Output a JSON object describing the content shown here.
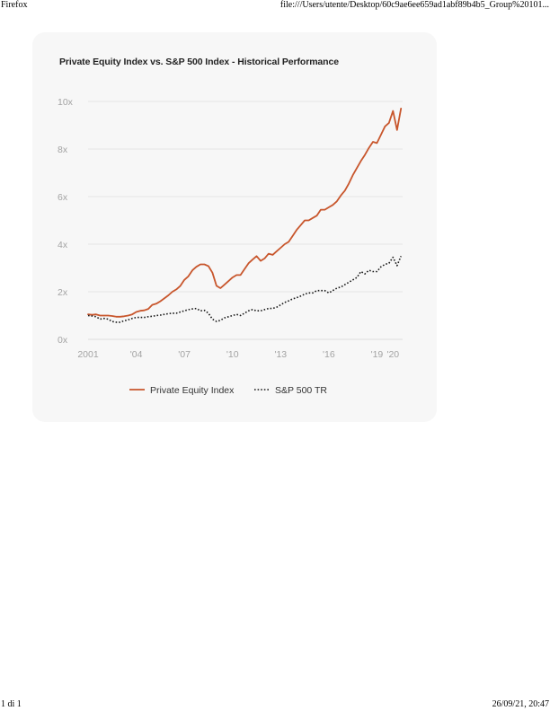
{
  "browser": {
    "header_left": "Firefox",
    "header_right": "file:///Users/utente/Desktop/60c9ae6ee659ad1abf89b4b5_Group%20101...",
    "footer_left": "1 di 1",
    "footer_right": "26/09/21, 20:47"
  },
  "chart_data": {
    "type": "line",
    "title": "Private Equity Index vs. S&P 500 Index - Historical Performance",
    "xlabel": "",
    "ylabel": "",
    "xlim": [
      2001,
      2020.6
    ],
    "ylim": [
      0,
      10
    ],
    "grid": true,
    "legend_position": "bottom",
    "x_ticks": [
      {
        "value": 2001,
        "label": "2001"
      },
      {
        "value": 2004,
        "label": "'04"
      },
      {
        "value": 2007,
        "label": "'07"
      },
      {
        "value": 2010,
        "label": "'10"
      },
      {
        "value": 2013,
        "label": "'13"
      },
      {
        "value": 2016,
        "label": "'16"
      },
      {
        "value": 2019,
        "label": "'19"
      },
      {
        "value": 2020,
        "label": "'20"
      }
    ],
    "y_ticks": [
      {
        "value": 0,
        "label": "0x"
      },
      {
        "value": 2,
        "label": "2x"
      },
      {
        "value": 4,
        "label": "4x"
      },
      {
        "value": 6,
        "label": "6x"
      },
      {
        "value": 8,
        "label": "8x"
      },
      {
        "value": 10,
        "label": "10x"
      }
    ],
    "series": [
      {
        "name": "Private Equity Index",
        "color": "#c8562c",
        "style": "solid",
        "points": [
          [
            2001.0,
            1.05
          ],
          [
            2001.25,
            1.03
          ],
          [
            2001.5,
            1.05
          ],
          [
            2001.75,
            1.0
          ],
          [
            2002.0,
            1.0
          ],
          [
            2002.25,
            1.0
          ],
          [
            2002.5,
            0.98
          ],
          [
            2002.75,
            0.95
          ],
          [
            2003.0,
            0.95
          ],
          [
            2003.25,
            0.97
          ],
          [
            2003.5,
            1.0
          ],
          [
            2003.75,
            1.05
          ],
          [
            2004.0,
            1.15
          ],
          [
            2004.25,
            1.2
          ],
          [
            2004.5,
            1.22
          ],
          [
            2004.75,
            1.28
          ],
          [
            2005.0,
            1.45
          ],
          [
            2005.25,
            1.5
          ],
          [
            2005.5,
            1.6
          ],
          [
            2005.75,
            1.72
          ],
          [
            2006.0,
            1.85
          ],
          [
            2006.25,
            2.0
          ],
          [
            2006.5,
            2.1
          ],
          [
            2006.75,
            2.25
          ],
          [
            2007.0,
            2.5
          ],
          [
            2007.25,
            2.65
          ],
          [
            2007.5,
            2.9
          ],
          [
            2007.75,
            3.05
          ],
          [
            2008.0,
            3.15
          ],
          [
            2008.25,
            3.15
          ],
          [
            2008.5,
            3.08
          ],
          [
            2008.75,
            2.8
          ],
          [
            2009.0,
            2.25
          ],
          [
            2009.25,
            2.15
          ],
          [
            2009.5,
            2.3
          ],
          [
            2009.75,
            2.45
          ],
          [
            2010.0,
            2.6
          ],
          [
            2010.25,
            2.7
          ],
          [
            2010.5,
            2.7
          ],
          [
            2010.75,
            2.95
          ],
          [
            2011.0,
            3.2
          ],
          [
            2011.25,
            3.35
          ],
          [
            2011.5,
            3.5
          ],
          [
            2011.75,
            3.3
          ],
          [
            2012.0,
            3.4
          ],
          [
            2012.25,
            3.6
          ],
          [
            2012.5,
            3.55
          ],
          [
            2012.75,
            3.7
          ],
          [
            2013.0,
            3.85
          ],
          [
            2013.25,
            4.0
          ],
          [
            2013.5,
            4.1
          ],
          [
            2013.75,
            4.35
          ],
          [
            2014.0,
            4.6
          ],
          [
            2014.25,
            4.8
          ],
          [
            2014.5,
            5.0
          ],
          [
            2014.75,
            5.0
          ],
          [
            2015.0,
            5.1
          ],
          [
            2015.25,
            5.2
          ],
          [
            2015.5,
            5.45
          ],
          [
            2015.75,
            5.45
          ],
          [
            2016.0,
            5.55
          ],
          [
            2016.25,
            5.65
          ],
          [
            2016.5,
            5.8
          ],
          [
            2016.75,
            6.05
          ],
          [
            2017.0,
            6.25
          ],
          [
            2017.25,
            6.55
          ],
          [
            2017.5,
            6.9
          ],
          [
            2017.75,
            7.2
          ],
          [
            2018.0,
            7.5
          ],
          [
            2018.25,
            7.75
          ],
          [
            2018.5,
            8.05
          ],
          [
            2018.75,
            8.3
          ],
          [
            2019.0,
            8.25
          ],
          [
            2019.25,
            8.6
          ],
          [
            2019.5,
            8.95
          ],
          [
            2019.75,
            9.1
          ],
          [
            2020.0,
            9.6
          ],
          [
            2020.25,
            8.8
          ],
          [
            2020.5,
            9.7
          ]
        ]
      },
      {
        "name": "S&P 500 TR",
        "color": "#1a1a1a",
        "style": "dotted",
        "points": [
          [
            2001.0,
            1.0
          ],
          [
            2001.25,
            0.98
          ],
          [
            2001.5,
            0.95
          ],
          [
            2001.75,
            0.85
          ],
          [
            2002.0,
            0.88
          ],
          [
            2002.25,
            0.85
          ],
          [
            2002.5,
            0.75
          ],
          [
            2002.75,
            0.72
          ],
          [
            2003.0,
            0.72
          ],
          [
            2003.25,
            0.78
          ],
          [
            2003.5,
            0.82
          ],
          [
            2003.75,
            0.88
          ],
          [
            2004.0,
            0.92
          ],
          [
            2004.25,
            0.92
          ],
          [
            2004.5,
            0.92
          ],
          [
            2004.75,
            0.95
          ],
          [
            2005.0,
            0.97
          ],
          [
            2005.25,
            1.0
          ],
          [
            2005.5,
            1.02
          ],
          [
            2005.75,
            1.05
          ],
          [
            2006.0,
            1.08
          ],
          [
            2006.25,
            1.1
          ],
          [
            2006.5,
            1.1
          ],
          [
            2006.75,
            1.15
          ],
          [
            2007.0,
            1.2
          ],
          [
            2007.25,
            1.25
          ],
          [
            2007.5,
            1.28
          ],
          [
            2007.75,
            1.3
          ],
          [
            2008.0,
            1.2
          ],
          [
            2008.25,
            1.22
          ],
          [
            2008.5,
            1.1
          ],
          [
            2008.75,
            0.85
          ],
          [
            2009.0,
            0.75
          ],
          [
            2009.25,
            0.8
          ],
          [
            2009.5,
            0.9
          ],
          [
            2009.75,
            0.95
          ],
          [
            2010.0,
            1.0
          ],
          [
            2010.25,
            1.05
          ],
          [
            2010.5,
            1.0
          ],
          [
            2010.75,
            1.1
          ],
          [
            2011.0,
            1.2
          ],
          [
            2011.25,
            1.25
          ],
          [
            2011.5,
            1.2
          ],
          [
            2011.75,
            1.2
          ],
          [
            2012.0,
            1.25
          ],
          [
            2012.25,
            1.3
          ],
          [
            2012.5,
            1.3
          ],
          [
            2012.75,
            1.35
          ],
          [
            2013.0,
            1.45
          ],
          [
            2013.25,
            1.55
          ],
          [
            2013.5,
            1.62
          ],
          [
            2013.75,
            1.7
          ],
          [
            2014.0,
            1.75
          ],
          [
            2014.25,
            1.82
          ],
          [
            2014.5,
            1.9
          ],
          [
            2014.75,
            1.95
          ],
          [
            2015.0,
            1.95
          ],
          [
            2015.25,
            2.05
          ],
          [
            2015.5,
            2.05
          ],
          [
            2015.75,
            2.05
          ],
          [
            2016.0,
            1.95
          ],
          [
            2016.25,
            2.05
          ],
          [
            2016.5,
            2.15
          ],
          [
            2016.75,
            2.2
          ],
          [
            2017.0,
            2.3
          ],
          [
            2017.25,
            2.4
          ],
          [
            2017.5,
            2.5
          ],
          [
            2017.75,
            2.6
          ],
          [
            2018.0,
            2.85
          ],
          [
            2018.25,
            2.75
          ],
          [
            2018.5,
            2.9
          ],
          [
            2018.75,
            2.85
          ],
          [
            2019.0,
            2.85
          ],
          [
            2019.25,
            3.05
          ],
          [
            2019.5,
            3.15
          ],
          [
            2019.75,
            3.2
          ],
          [
            2020.0,
            3.45
          ],
          [
            2020.25,
            3.1
          ],
          [
            2020.5,
            3.5
          ]
        ]
      }
    ]
  }
}
